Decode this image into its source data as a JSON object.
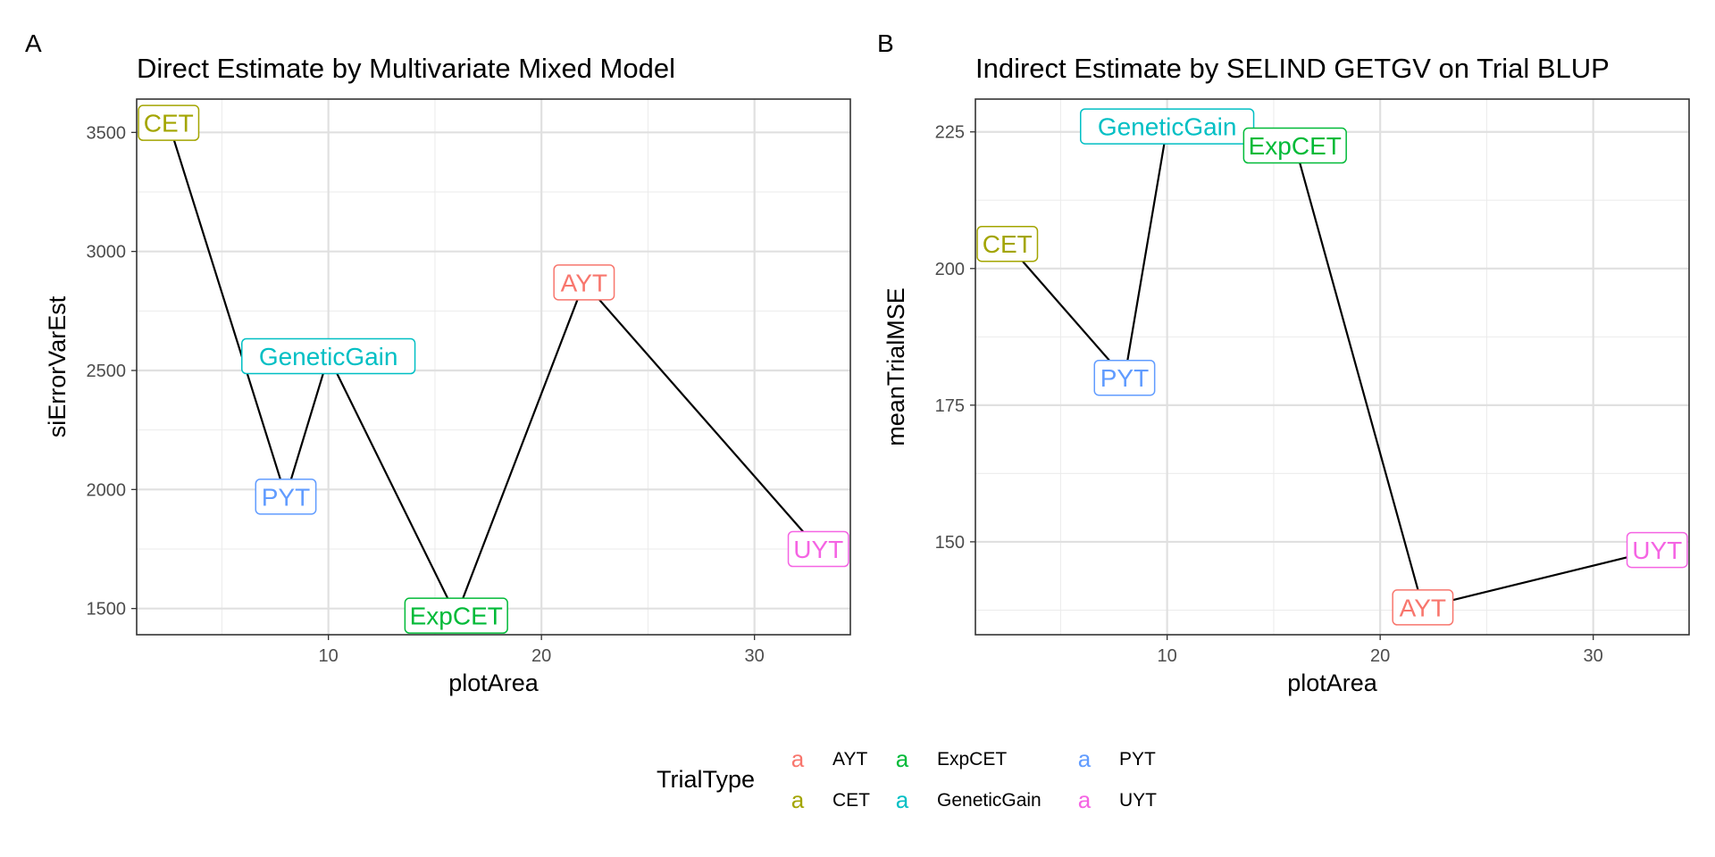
{
  "chart_data": [
    {
      "type": "line",
      "panel_label": "A",
      "title": "Direct Estimate by Multivariate Mixed Model",
      "xlabel": "plotArea",
      "ylabel": "siErrorVarEst",
      "xlim": [
        1,
        34.5
      ],
      "ylim": [
        1390,
        3640
      ],
      "xticks": [
        10,
        20,
        30
      ],
      "yticks": [
        1500,
        2000,
        2500,
        3000,
        3500
      ],
      "grid": true,
      "points": [
        {
          "label": "CET",
          "x": 2.5,
          "y": 3540,
          "color": "#A3A500"
        },
        {
          "label": "PYT",
          "x": 8,
          "y": 1970,
          "color": "#619CFF"
        },
        {
          "label": "GeneticGain",
          "x": 10,
          "y": 2560,
          "color": "#00BFC4"
        },
        {
          "label": "ExpCET",
          "x": 16,
          "y": 1470,
          "color": "#00BA38"
        },
        {
          "label": "AYT",
          "x": 22,
          "y": 2870,
          "color": "#F8766D"
        },
        {
          "label": "UYT",
          "x": 33,
          "y": 1750,
          "color": "#F564E3"
        }
      ]
    },
    {
      "type": "line",
      "panel_label": "B",
      "title": "Indirect Estimate by SELIND GETGV on Trial BLUP",
      "xlabel": "plotArea",
      "ylabel": "meanTrialMSE",
      "xlim": [
        1,
        34.5
      ],
      "ylim": [
        133,
        231
      ],
      "xticks": [
        10,
        20,
        30
      ],
      "yticks": [
        150,
        175,
        200,
        225
      ],
      "grid": true,
      "points": [
        {
          "label": "CET",
          "x": 2.5,
          "y": 204.5,
          "color": "#A3A500"
        },
        {
          "label": "PYT",
          "x": 8,
          "y": 180,
          "color": "#619CFF"
        },
        {
          "label": "GeneticGain",
          "x": 10,
          "y": 226,
          "color": "#00BFC4"
        },
        {
          "label": "ExpCET",
          "x": 16,
          "y": 222.5,
          "color": "#00BA38"
        },
        {
          "label": "AYT",
          "x": 22,
          "y": 138,
          "color": "#F8766D"
        },
        {
          "label": "UYT",
          "x": 33,
          "y": 148.5,
          "color": "#F564E3"
        }
      ]
    }
  ],
  "legend": {
    "title": "TrialType",
    "glyph": "a",
    "items": [
      {
        "label": "AYT",
        "color": "#F8766D"
      },
      {
        "label": "CET",
        "color": "#A3A500"
      },
      {
        "label": "ExpCET",
        "color": "#00BA38"
      },
      {
        "label": "GeneticGain",
        "color": "#00BFC4"
      },
      {
        "label": "PYT",
        "color": "#619CFF"
      },
      {
        "label": "UYT",
        "color": "#F564E3"
      }
    ]
  }
}
